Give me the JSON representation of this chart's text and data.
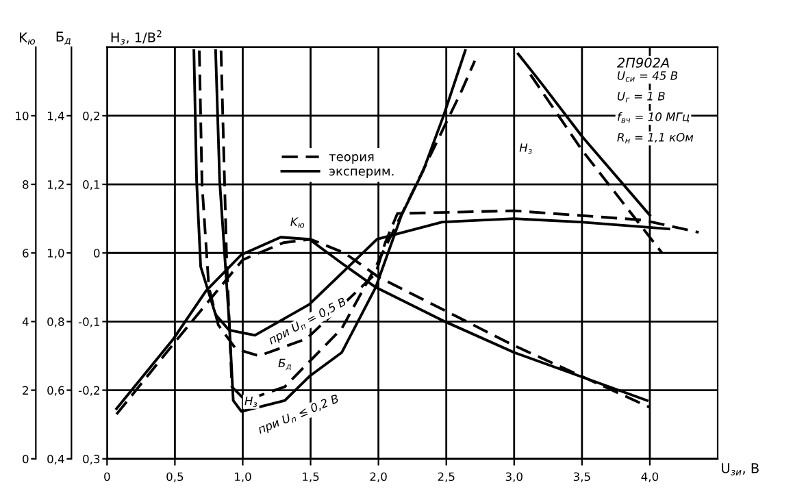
{
  "chart_data": {
    "type": "line",
    "title": "2П902А",
    "xlabel": "U$_{зи}$, В",
    "ylabel": "K$_{ю}$",
    "y2label": "Б$_{д}$",
    "y3label": "Н$_{з}$, 1/В$^{2}$",
    "xlim": [
      0,
      4.5
    ],
    "xticks": [
      0,
      {
        "value": 0.5,
        "label": "0,5"
      },
      {
        "value": 1.0,
        "label": "1,0"
      },
      {
        "value": 1.5,
        "label": "1,5"
      },
      {
        "value": 2.0,
        "label": "2,0"
      },
      {
        "value": 2.5,
        "label": "2,5"
      },
      {
        "value": 3.0,
        "label": "3,0"
      },
      {
        "value": 3.5,
        "label": "3,5"
      },
      {
        "value": 4.0,
        "label": "4,0"
      }
    ],
    "ylim": [
      0,
      12
    ],
    "yticks": [
      0,
      2,
      4,
      6,
      8,
      10
    ],
    "y2lim": [
      0.4,
      1.6
    ],
    "y2ticks": [
      {
        "value": 0.4,
        "label": "0,4"
      },
      {
        "value": 0.6,
        "label": "0,6"
      },
      {
        "value": 0.8,
        "label": "0,8"
      },
      {
        "value": 1.0,
        "label": "1,0"
      },
      {
        "value": 1.2,
        "label": "1,2"
      },
      {
        "value": 1.4,
        "label": "1,4"
      }
    ],
    "y3lim": [
      -0.3,
      0.3
    ],
    "y3ticks": [
      {
        "value": -0.3,
        "label": "0,3"
      },
      {
        "value": -0.2,
        "label": "-0,2"
      },
      {
        "value": -0.1,
        "label": "-0,1"
      },
      0,
      {
        "value": 0.1,
        "label": "0,1"
      },
      {
        "value": 0.2,
        "label": "0,2"
      }
    ],
    "grid": true,
    "legend": "top",
    "marker": "none",
    "series": [
      {
        "name": "эксперим.",
        "color": "#000000",
        "line_style": "solid",
        "axis": "y",
        "x": [
          0.07,
          0.49,
          0.73,
          0.99,
          1.28,
          1.49,
          1.73,
          1.98,
          2.49,
          3.0,
          3.49,
          3.98
        ],
        "values": [
          1.46,
          3.5,
          4.9,
          5.95,
          6.46,
          6.4,
          5.7,
          5.0,
          4.0,
          3.1,
          2.4,
          1.7
        ]
      },
      {
        "name": "теория",
        "color": "#000000",
        "line_style": "dashed",
        "axis": "y",
        "x": [
          0.07,
          0.5,
          1.0,
          1.3,
          1.5,
          1.75,
          2.0,
          2.5,
          3.0,
          3.5,
          4.0
        ],
        "values": [
          1.3,
          3.4,
          5.8,
          6.3,
          6.4,
          6.0,
          5.3,
          4.3,
          3.3,
          2.4,
          1.5
        ]
      },
      {
        "color": "#000000",
        "line_style": "solid",
        "axis": "y2",
        "x": [
          0.64,
          0.66,
          0.69,
          0.8,
          0.9,
          1.09,
          1.49,
          1.99,
          2.47,
          3.0,
          3.49,
          3.98,
          4.14
        ],
        "values": [
          1.59,
          1.21,
          0.96,
          0.82,
          0.775,
          0.76,
          0.85,
          1.04,
          1.09,
          1.1,
          1.09,
          1.075,
          1.07
        ]
      },
      {
        "color": "#000000",
        "line_style": "dashed",
        "axis": "y2",
        "x": [
          0.68,
          0.7,
          0.75,
          0.82,
          0.95,
          1.12,
          1.47,
          1.98,
          2.05,
          2.14,
          3.0,
          3.95,
          4.36
        ],
        "values": [
          1.59,
          1.2,
          0.9,
          0.79,
          0.72,
          0.7,
          0.75,
          0.94,
          1.03,
          1.115,
          1.123,
          1.096,
          1.06
        ]
      },
      {
        "color": "#000000",
        "line_style": "solid",
        "axis": "y3",
        "x": [
          0.8,
          0.83,
          0.9,
          0.93,
          0.99,
          1.31,
          1.49,
          1.73,
          1.98,
          2.17,
          2.33,
          2.48,
          2.64
        ],
        "values": [
          0.295,
          0.105,
          -0.1,
          -0.215,
          -0.231,
          -0.215,
          -0.18,
          -0.145,
          -0.05,
          0.055,
          0.12,
          0.2,
          0.295
        ]
      },
      {
        "color": "#000000",
        "line_style": "dashed",
        "axis": "y3",
        "x": [
          0.84,
          0.88,
          0.92,
          1.02,
          1.31,
          1.73,
          1.98,
          2.23,
          2.61,
          2.71
        ],
        "values": [
          0.295,
          0,
          -0.195,
          -0.215,
          -0.195,
          -0.11,
          -0.02,
          0.08,
          0.235,
          0.28
        ]
      },
      {
        "color": "#000000",
        "line_style": "solid",
        "axis": "y3",
        "x": [
          3.03,
          3.21,
          3.5,
          4.0
        ],
        "values": [
          0.29,
          0.245,
          0.17,
          0.055
        ]
      },
      {
        "color": "#000000",
        "line_style": "dashed",
        "axis": "y3",
        "x": [
          3.12,
          3.5,
          4.09
        ],
        "values": [
          0.26,
          0.15,
          0.0
        ]
      }
    ],
    "annotations": [
      "U$_{си}$ = 45 В",
      "U$_{г}$ = 1 В",
      "f$_{вч}$ = 10 МГц",
      "R$_{н}$ = 1,1 кОм",
      "K$_{ю}$",
      "при U$_{п}$ = 0,5 В",
      "Б$_{д}$",
      "Н$_{з}$",
      "при U$_{п}$ ≤ 0,2 В",
      "Н$_{з}$"
    ]
  }
}
